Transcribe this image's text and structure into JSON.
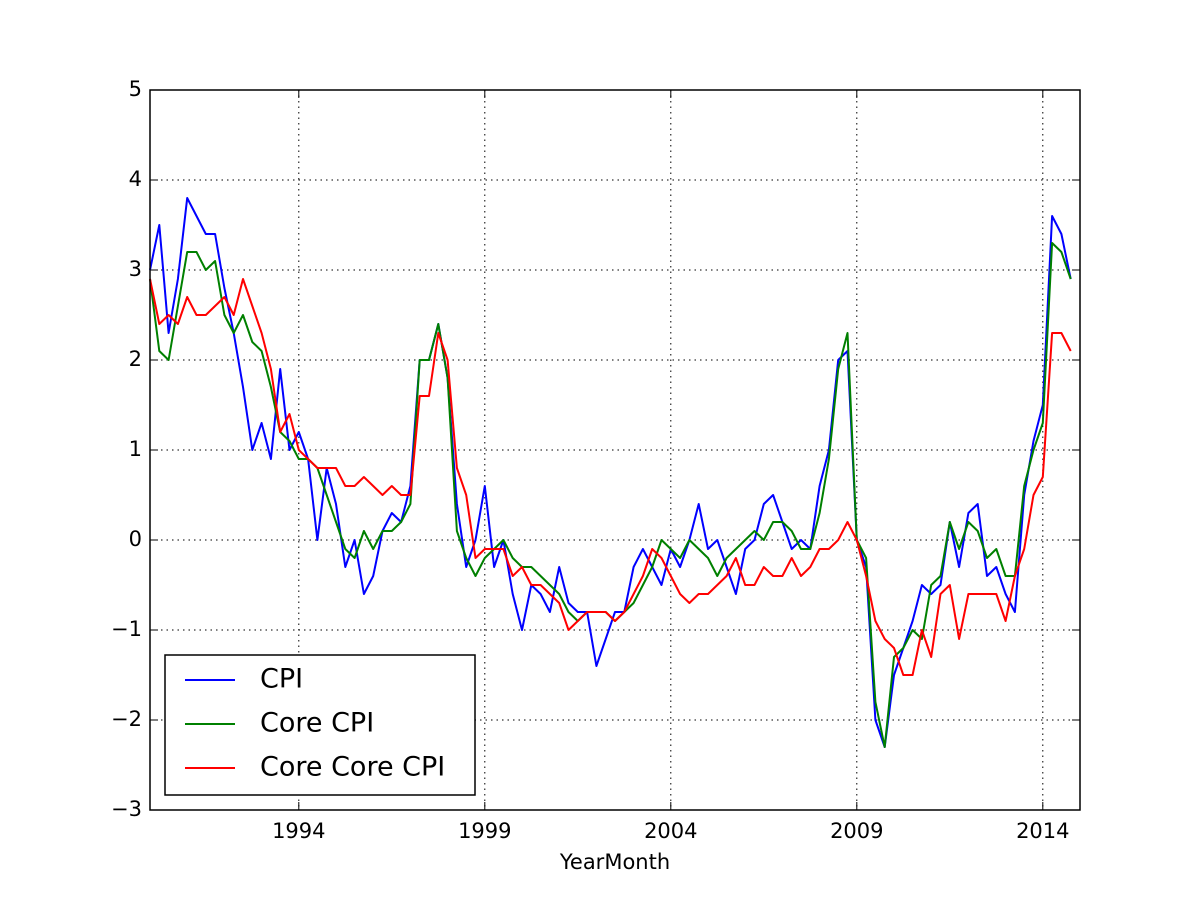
{
  "chart_data": {
    "type": "line",
    "xlabel": "YearMonth",
    "x": [
      1990,
      1990.25,
      1990.5,
      1990.75,
      1991,
      1991.25,
      1991.5,
      1991.75,
      1992,
      1992.25,
      1992.5,
      1992.75,
      1993,
      1993.25,
      1993.5,
      1993.75,
      1994,
      1994.25,
      1994.5,
      1994.75,
      1995,
      1995.25,
      1995.5,
      1995.75,
      1996,
      1996.25,
      1996.5,
      1996.75,
      1997,
      1997.25,
      1997.5,
      1997.75,
      1998,
      1998.25,
      1998.5,
      1998.75,
      1999,
      1999.25,
      1999.5,
      1999.75,
      2000,
      2000.25,
      2000.5,
      2000.75,
      2001,
      2001.25,
      2001.5,
      2001.75,
      2002,
      2002.25,
      2002.5,
      2002.75,
      2003,
      2003.25,
      2003.5,
      2003.75,
      2004,
      2004.25,
      2004.5,
      2004.75,
      2005,
      2005.25,
      2005.5,
      2005.75,
      2006,
      2006.25,
      2006.5,
      2006.75,
      2007,
      2007.25,
      2007.5,
      2007.75,
      2008,
      2008.25,
      2008.5,
      2008.75,
      2009,
      2009.25,
      2009.5,
      2009.75,
      2010,
      2010.25,
      2010.5,
      2010.75,
      2011,
      2011.25,
      2011.5,
      2011.75,
      2012,
      2012.25,
      2012.5,
      2012.75,
      2013,
      2013.25,
      2013.5,
      2013.75,
      2014,
      2014.25,
      2014.5,
      2014.75
    ],
    "series": [
      {
        "name": "CPI",
        "color": "#0000ff",
        "values": [
          3.0,
          3.5,
          2.3,
          2.9,
          3.8,
          3.6,
          3.4,
          3.4,
          2.8,
          2.3,
          1.7,
          1.0,
          1.3,
          0.9,
          1.9,
          1.0,
          1.2,
          0.9,
          0.0,
          0.8,
          0.4,
          -0.3,
          0.0,
          -0.6,
          -0.4,
          0.1,
          0.3,
          0.2,
          0.6,
          2.0,
          2.0,
          2.4,
          1.8,
          0.4,
          -0.3,
          0.0,
          0.6,
          -0.3,
          0.0,
          -0.6,
          -1.0,
          -0.5,
          -0.6,
          -0.8,
          -0.3,
          -0.7,
          -0.8,
          -0.8,
          -1.4,
          -1.1,
          -0.8,
          -0.8,
          -0.3,
          -0.1,
          -0.3,
          -0.5,
          -0.1,
          -0.3,
          0.0,
          0.4,
          -0.1,
          0.0,
          -0.3,
          -0.6,
          -0.1,
          0.0,
          0.4,
          0.5,
          0.2,
          -0.1,
          0.0,
          -0.1,
          0.6,
          1.0,
          2.0,
          2.1,
          0.0,
          -0.3,
          -2.0,
          -2.3,
          -1.5,
          -1.2,
          -0.9,
          -0.5,
          -0.6,
          -0.5,
          0.2,
          -0.3,
          0.3,
          0.4,
          -0.4,
          -0.3,
          -0.6,
          -0.8,
          0.5,
          1.1,
          1.5,
          3.6,
          3.4,
          2.9
        ]
      },
      {
        "name": "Core CPI",
        "color": "#008000",
        "values": [
          2.9,
          2.1,
          2.0,
          2.6,
          3.2,
          3.2,
          3.0,
          3.1,
          2.5,
          2.3,
          2.5,
          2.2,
          2.1,
          1.7,
          1.2,
          1.1,
          0.9,
          0.9,
          0.8,
          0.5,
          0.2,
          -0.1,
          -0.2,
          0.1,
          -0.1,
          0.1,
          0.1,
          0.2,
          0.4,
          2.0,
          2.0,
          2.4,
          1.8,
          0.1,
          -0.2,
          -0.4,
          -0.2,
          -0.1,
          0.0,
          -0.2,
          -0.3,
          -0.3,
          -0.4,
          -0.5,
          -0.6,
          -0.8,
          -0.9,
          -0.8,
          -0.8,
          -0.8,
          -0.9,
          -0.8,
          -0.7,
          -0.5,
          -0.3,
          0.0,
          -0.1,
          -0.2,
          0.0,
          -0.1,
          -0.2,
          -0.4,
          -0.2,
          -0.1,
          0.0,
          0.1,
          0.0,
          0.2,
          0.2,
          0.1,
          -0.1,
          -0.1,
          0.3,
          0.9,
          1.9,
          2.3,
          0.0,
          -0.2,
          -1.8,
          -2.3,
          -1.3,
          -1.2,
          -1.0,
          -1.1,
          -0.5,
          -0.4,
          0.2,
          -0.1,
          0.2,
          0.1,
          -0.2,
          -0.1,
          -0.4,
          -0.4,
          0.6,
          1.0,
          1.3,
          3.3,
          3.2,
          2.9
        ]
      },
      {
        "name": "Core Core CPI",
        "color": "#ff0000",
        "values": [
          2.9,
          2.4,
          2.5,
          2.4,
          2.7,
          2.5,
          2.5,
          2.6,
          2.7,
          2.5,
          2.9,
          2.6,
          2.3,
          1.9,
          1.2,
          1.4,
          1.0,
          0.9,
          0.8,
          0.8,
          0.8,
          0.6,
          0.6,
          0.7,
          0.6,
          0.5,
          0.6,
          0.5,
          0.5,
          1.6,
          1.6,
          2.3,
          2.0,
          0.8,
          0.5,
          -0.2,
          -0.1,
          -0.1,
          -0.1,
          -0.4,
          -0.3,
          -0.5,
          -0.5,
          -0.6,
          -0.7,
          -1.0,
          -0.9,
          -0.8,
          -0.8,
          -0.8,
          -0.9,
          -0.8,
          -0.6,
          -0.4,
          -0.1,
          -0.2,
          -0.4,
          -0.6,
          -0.7,
          -0.6,
          -0.6,
          -0.5,
          -0.4,
          -0.2,
          -0.5,
          -0.5,
          -0.3,
          -0.4,
          -0.4,
          -0.2,
          -0.4,
          -0.3,
          -0.1,
          -0.1,
          0.0,
          0.2,
          0.0,
          -0.4,
          -0.9,
          -1.1,
          -1.2,
          -1.5,
          -1.5,
          -1.0,
          -1.3,
          -0.6,
          -0.5,
          -1.1,
          -0.6,
          -0.6,
          -0.6,
          -0.6,
          -0.9,
          -0.4,
          -0.1,
          0.5,
          0.7,
          2.3,
          2.3,
          2.1
        ]
      }
    ],
    "xlim": [
      1990,
      2015
    ],
    "xticks": [
      1994,
      1999,
      2004,
      2009,
      2014
    ],
    "ylim": [
      -3,
      5
    ],
    "yticks": [
      {
        "value": -3,
        "label": "−3"
      },
      {
        "value": -2,
        "label": "−2"
      },
      {
        "value": -1,
        "label": "−1"
      },
      0,
      1,
      2,
      3,
      4,
      5
    ],
    "grid": true,
    "legend": "lower left"
  }
}
